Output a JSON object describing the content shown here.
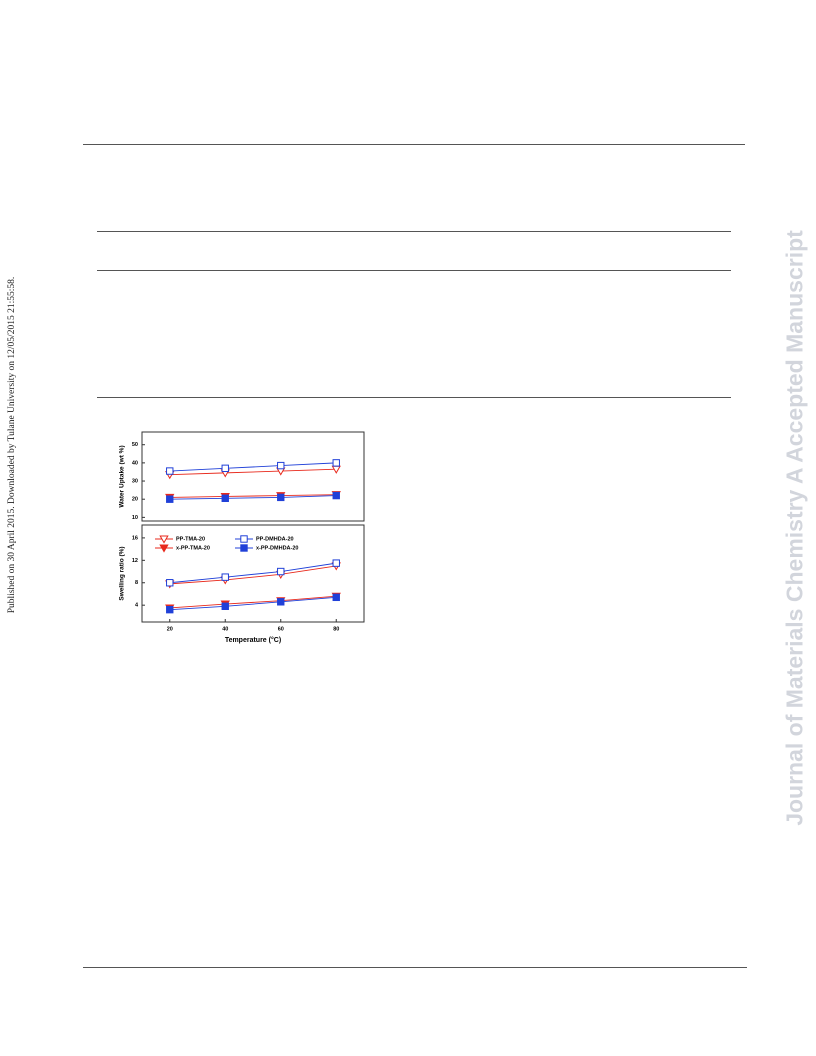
{
  "side_note": "Published on 30 April 2015. Downloaded by Tulane University on 12/05/2015 21:55:58.",
  "watermark": "Journal of Materials Chemistry A Accepted Manuscript",
  "chart_data": [
    {
      "type": "line",
      "ylabel": "Water Uptake (wt %)",
      "x": [
        20,
        40,
        60,
        80
      ],
      "xlim": [
        10,
        90
      ],
      "ylim": [
        8,
        57
      ],
      "yticks": [
        10,
        20,
        30,
        40,
        50
      ],
      "series": [
        {
          "color": "#e8291c",
          "marker": "triangle-down-open",
          "values": [
            33.5,
            34.5,
            35.5,
            36.5
          ]
        },
        {
          "color": "#2040d8",
          "marker": "square-open",
          "values": [
            35.5,
            37,
            38.5,
            40
          ]
        },
        {
          "color": "#e8291c",
          "marker": "triangle-down-filled",
          "values": [
            21,
            21.5,
            22,
            22.5
          ]
        },
        {
          "color": "#2040d8",
          "marker": "square-filled",
          "values": [
            20,
            20.5,
            21,
            22
          ]
        }
      ]
    },
    {
      "type": "line",
      "ylabel": "Swelling ratio (%)",
      "xlabel": "Temperature (°C)",
      "x": [
        20,
        40,
        60,
        80
      ],
      "xlim": [
        10,
        90
      ],
      "xticks": [
        20,
        40,
        60,
        80
      ],
      "ylim": [
        1,
        18.3
      ],
      "yticks": [
        4,
        8,
        12,
        16
      ],
      "legend": "upper",
      "series": [
        {
          "name": "PP-TMA-20",
          "color": "#e8291c",
          "marker": "triangle-down-open",
          "values": [
            7.8,
            8.5,
            9.5,
            11
          ]
        },
        {
          "name": "PP-DMHDA-20",
          "color": "#2040d8",
          "marker": "square-open",
          "values": [
            8,
            9,
            10,
            11.5
          ]
        },
        {
          "name": "x-PP-TMA-20",
          "color": "#e8291c",
          "marker": "triangle-down-filled",
          "values": [
            3.5,
            4.2,
            4.8,
            5.6
          ]
        },
        {
          "name": "x-PP-DMHDA-20",
          "color": "#2040d8",
          "marker": "square-filled",
          "values": [
            3.2,
            3.8,
            4.6,
            5.4
          ]
        }
      ]
    }
  ]
}
